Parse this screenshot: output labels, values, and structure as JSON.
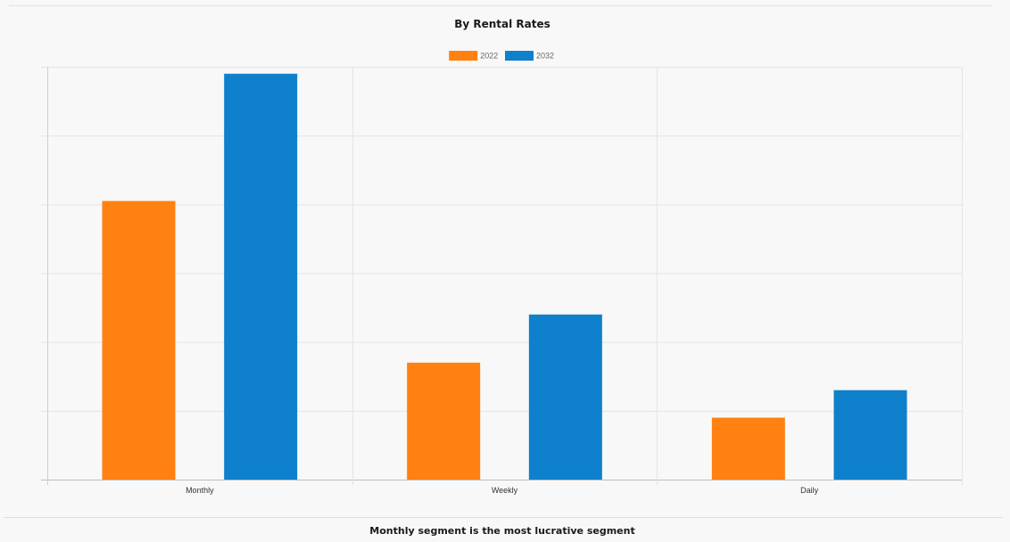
{
  "chart_data": {
    "type": "bar",
    "title": "By Rental Rates",
    "categories": [
      "Monthly",
      "Weekly",
      "Daily"
    ],
    "series": [
      {
        "name": "2022",
        "values": [
          40.5,
          17,
          9
        ],
        "color": "#ff8112"
      },
      {
        "name": "2032",
        "values": [
          59,
          24,
          13
        ],
        "color": "#0f80cc"
      }
    ],
    "ylim": [
      0,
      60
    ],
    "y_gridline_step": 10,
    "grid": true,
    "legend_position": "top-center",
    "xlabel": "",
    "ylabel": ""
  },
  "caption": "Monthly segment is the most lucrative segment"
}
